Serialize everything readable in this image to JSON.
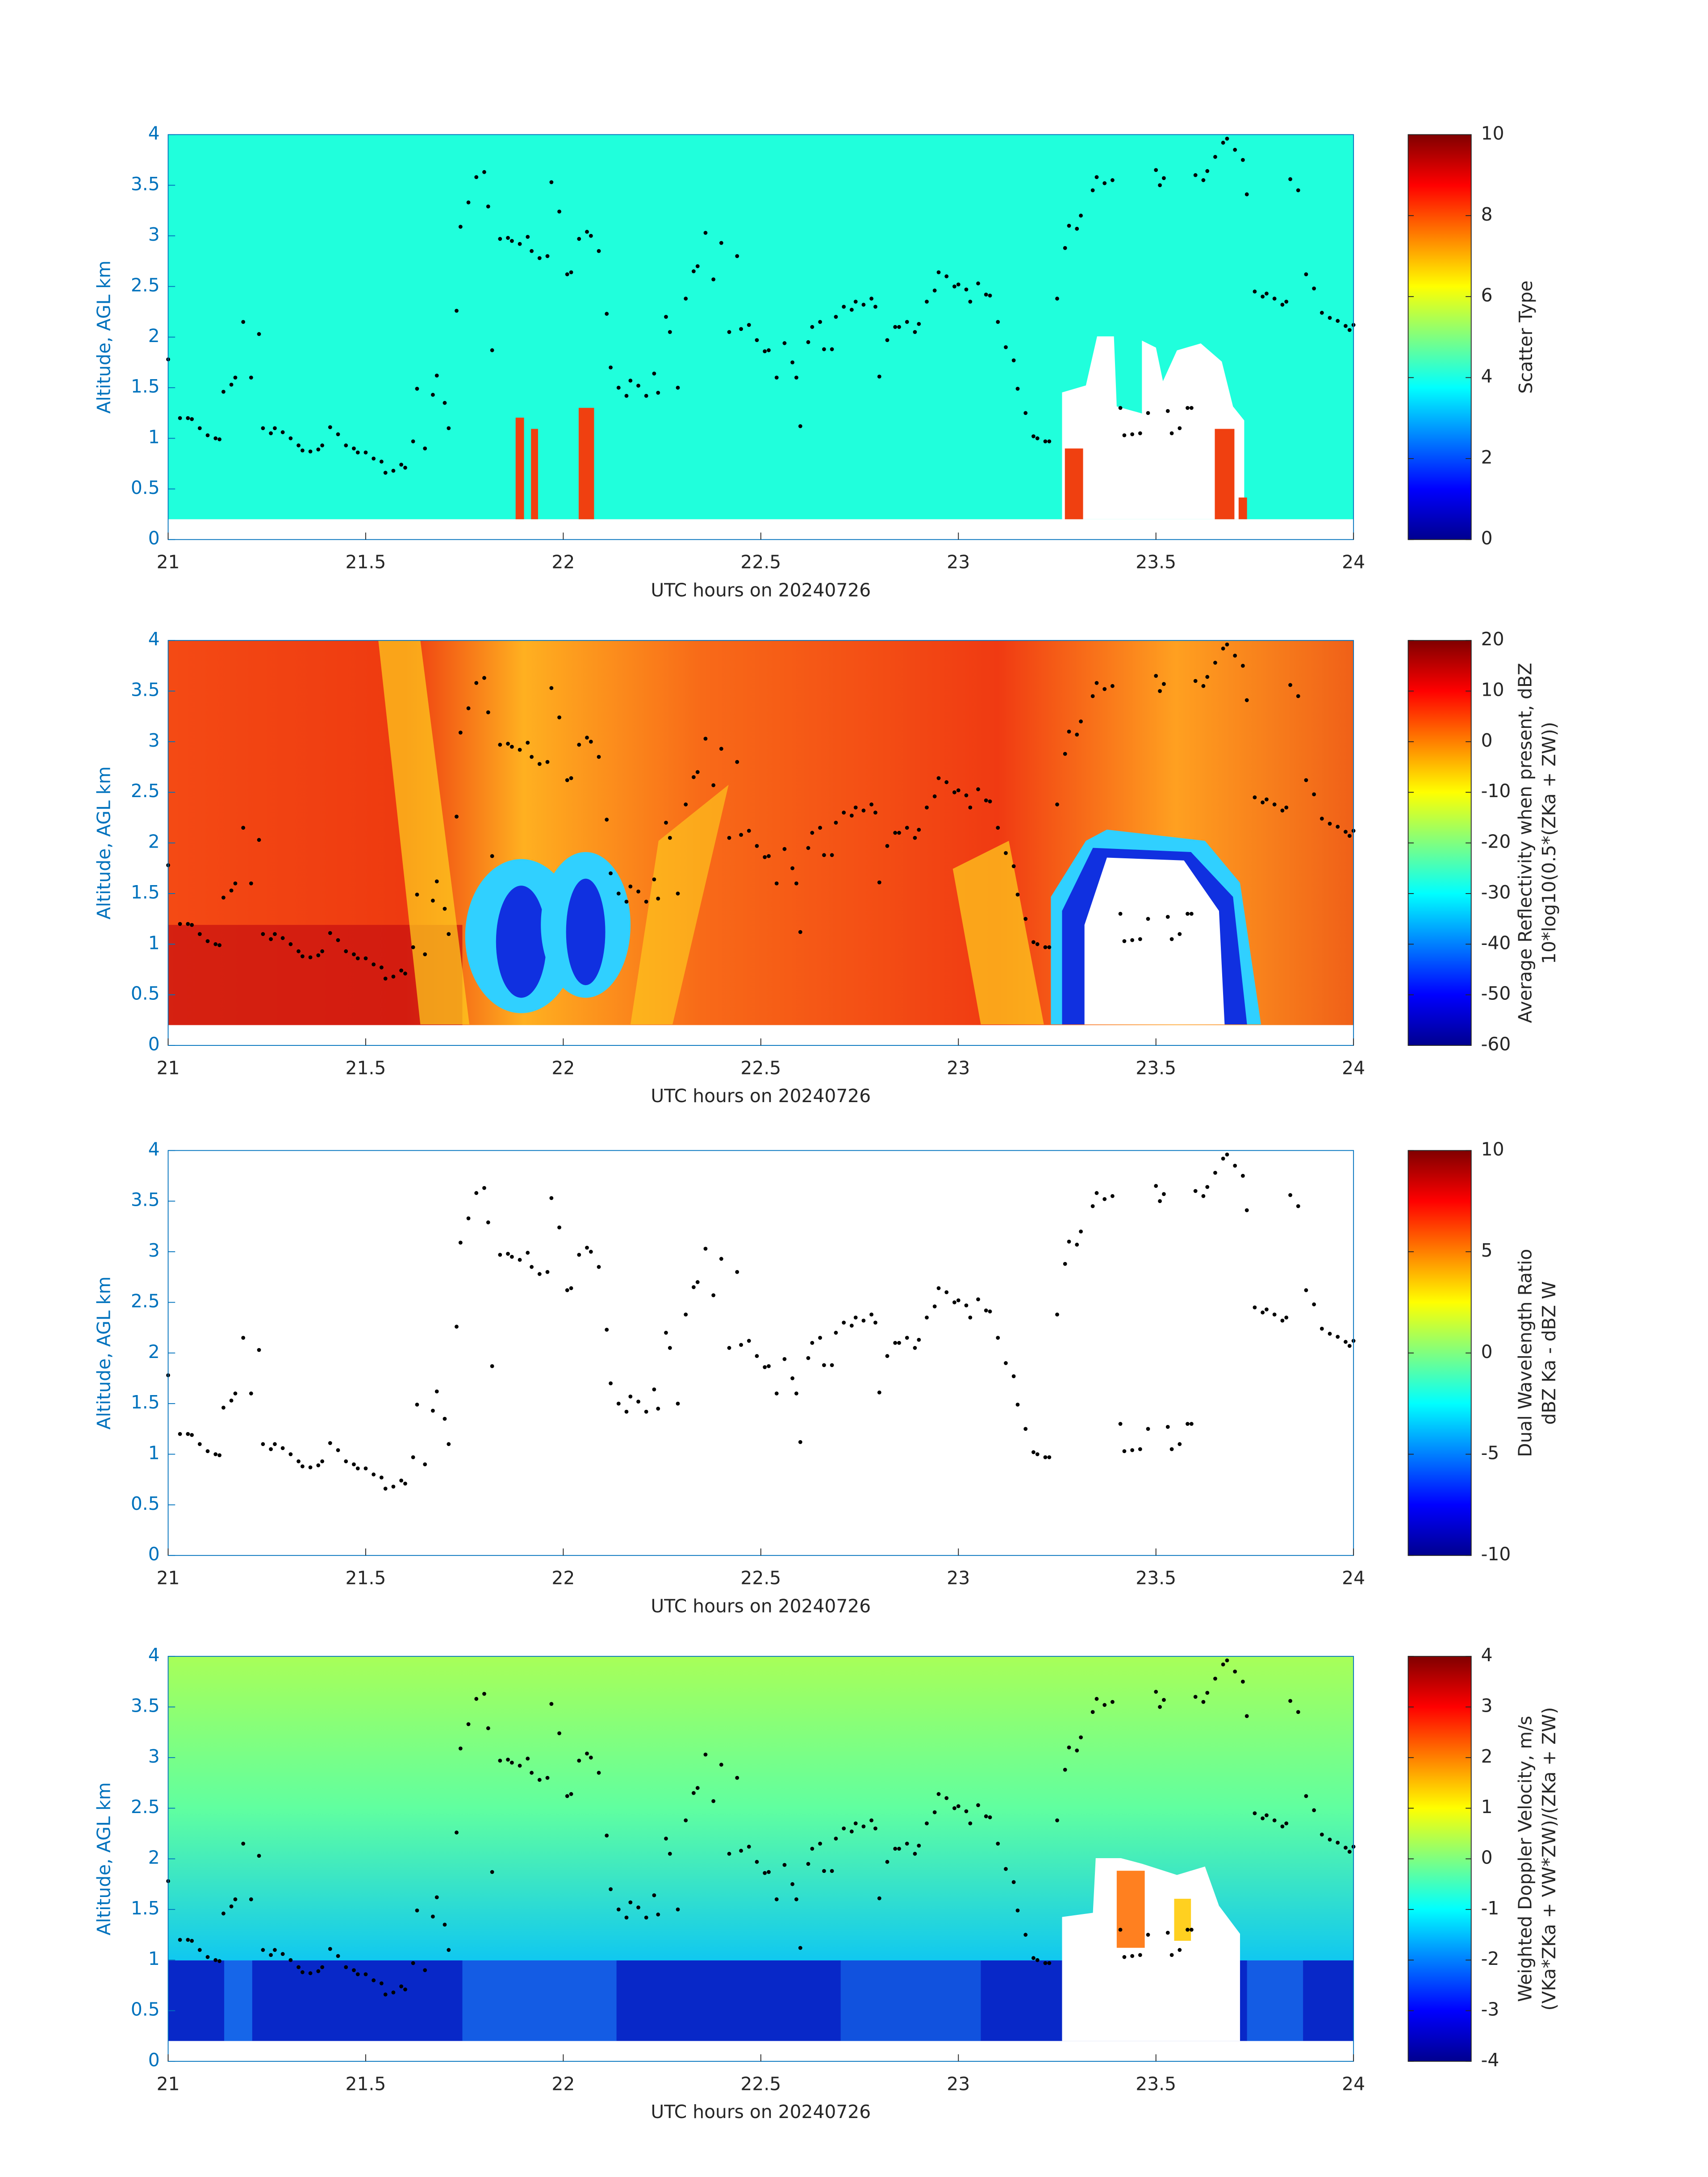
{
  "chart_data": [
    {
      "type": "heatmap",
      "xlabel": "UTC hours on 20240726",
      "ylabel": "Altitude, AGL km",
      "xlim": [
        21,
        24
      ],
      "xticks": [
        21,
        21.5,
        22,
        22.5,
        23,
        23.5,
        24
      ],
      "ylim": [
        0,
        4
      ],
      "yticks": [
        0,
        0.5,
        1,
        1.5,
        2,
        2.5,
        3,
        3.5,
        4
      ],
      "colorbar": {
        "label": [
          "Scatter Type"
        ],
        "clim": [
          0,
          10
        ],
        "ticks": [
          0,
          2,
          4,
          6,
          8,
          10
        ]
      },
      "points": {
        "color": "#000000",
        "x": [
          21.0,
          21.03,
          21.05,
          21.06,
          21.08,
          21.1,
          21.12,
          21.13,
          21.14,
          21.16,
          21.17,
          21.19,
          21.21,
          21.23,
          21.24,
          21.26,
          21.27,
          21.29,
          21.31,
          21.33,
          21.34,
          21.36,
          21.38,
          21.39,
          21.41,
          21.43,
          21.45,
          21.47,
          21.48,
          21.5,
          21.52,
          21.54,
          21.55,
          21.57,
          21.59,
          21.6,
          21.62,
          21.63,
          21.65,
          21.67,
          21.68,
          21.7,
          21.71,
          21.73,
          21.74,
          21.76,
          21.78,
          21.8,
          21.81,
          21.82,
          21.84,
          21.86,
          21.87,
          21.89,
          21.91,
          21.92,
          21.94,
          21.96,
          21.97,
          21.99,
          22.01,
          22.02,
          22.04,
          22.06,
          22.07,
          22.09,
          22.11,
          22.12,
          22.14,
          22.16,
          22.17,
          22.19,
          22.21,
          22.23,
          22.24,
          22.26,
          22.27,
          22.29,
          22.31,
          22.33,
          22.34,
          22.36,
          22.38,
          22.4,
          22.42,
          22.44,
          22.45,
          22.47,
          22.49,
          22.51,
          22.52,
          22.54,
          22.56,
          22.58,
          22.59,
          22.6,
          22.62,
          22.63,
          22.65,
          22.66,
          22.68,
          22.69,
          22.71,
          22.73,
          22.74,
          22.76,
          22.78,
          22.79,
          22.8,
          22.82,
          22.84,
          22.85,
          22.87,
          22.89,
          22.9,
          22.92,
          22.94,
          22.95,
          22.97,
          22.99,
          23.0,
          23.02,
          23.03,
          23.05,
          23.07,
          23.08,
          23.1,
          23.12,
          23.14,
          23.15,
          23.17,
          23.19,
          23.2,
          23.22,
          23.23,
          23.25,
          23.27,
          23.28,
          23.3,
          23.31,
          23.34,
          23.35,
          23.37,
          23.39,
          23.41,
          23.42,
          23.44,
          23.46,
          23.48,
          23.5,
          23.51,
          23.52,
          23.53,
          23.54,
          23.56,
          23.58,
          23.59,
          23.6,
          23.62,
          23.63,
          23.65,
          23.67,
          23.68,
          23.7,
          23.72,
          23.73,
          23.75,
          23.77,
          23.78,
          23.8,
          23.82,
          23.83,
          23.84,
          23.86,
          23.88,
          23.9,
          23.92,
          23.94,
          23.96,
          23.98,
          23.99,
          24.0
        ],
        "values": [
          1.78,
          1.2,
          1.2,
          1.19,
          1.1,
          1.03,
          1.0,
          0.99,
          1.46,
          1.53,
          1.6,
          2.15,
          1.6,
          2.03,
          1.1,
          1.05,
          1.1,
          1.06,
          1.0,
          0.93,
          0.88,
          0.87,
          0.89,
          0.93,
          1.11,
          1.04,
          0.93,
          0.9,
          0.86,
          0.86,
          0.8,
          0.77,
          0.66,
          0.68,
          0.74,
          0.71,
          0.97,
          1.49,
          0.9,
          1.43,
          1.62,
          1.35,
          1.1,
          2.26,
          3.09,
          3.33,
          3.58,
          3.63,
          3.29,
          1.87,
          2.97,
          2.98,
          2.95,
          2.92,
          2.99,
          2.85,
          2.78,
          2.8,
          3.53,
          3.24,
          2.62,
          2.64,
          2.97,
          3.04,
          3.0,
          2.85,
          2.23,
          1.7,
          1.5,
          1.42,
          1.57,
          1.52,
          1.42,
          1.64,
          1.45,
          2.2,
          2.05,
          1.5,
          2.38,
          2.65,
          2.7,
          3.03,
          2.57,
          2.93,
          2.05,
          2.8,
          2.08,
          2.12,
          1.97,
          1.86,
          1.87,
          1.6,
          1.94,
          1.75,
          1.6,
          1.12,
          1.95,
          2.1,
          2.15,
          1.88,
          1.88,
          2.2,
          2.3,
          2.27,
          2.35,
          2.32,
          2.38,
          2.3,
          1.61,
          1.97,
          2.1,
          2.1,
          2.15,
          2.05,
          2.13,
          2.35,
          2.46,
          2.64,
          2.6,
          2.5,
          2.52,
          2.47,
          2.35,
          2.53,
          2.42,
          2.41,
          2.15,
          1.9,
          1.77,
          1.49,
          1.25,
          1.02,
          1.0,
          0.97,
          0.97,
          2.38,
          2.88,
          3.1,
          3.07,
          3.2,
          3.45,
          3.58,
          3.52,
          3.55,
          1.3,
          1.03,
          1.04,
          1.05,
          1.25,
          3.65,
          3.5,
          3.57,
          1.27,
          1.05,
          1.1,
          1.3,
          1.3,
          3.6,
          3.55,
          3.64,
          3.78,
          3.92,
          3.96,
          3.85,
          3.75,
          3.41,
          2.45,
          2.4,
          2.43,
          2.38,
          2.32,
          2.35,
          3.56,
          3.45,
          2.62,
          2.48,
          2.24,
          2.19,
          2.16,
          2.11,
          2.07,
          2.12
        ]
      }
    },
    {
      "type": "heatmap",
      "xlabel": "UTC hours on 20240726",
      "ylabel": "Altitude, AGL km",
      "xlim": [
        21,
        24
      ],
      "xticks": [
        21,
        21.5,
        22,
        22.5,
        23,
        23.5,
        24
      ],
      "ylim": [
        0,
        4
      ],
      "yticks": [
        0,
        0.5,
        1,
        1.5,
        2,
        2.5,
        3,
        3.5,
        4
      ],
      "colorbar": {
        "label": [
          "Average Reflectivity when present, dBZ",
          "10*log10(0.5*(ZKa + ZW))"
        ],
        "clim": [
          -60,
          20
        ],
        "ticks": [
          -60,
          -50,
          -40,
          -30,
          -20,
          -10,
          0,
          10,
          20
        ]
      }
    },
    {
      "type": "heatmap",
      "xlabel": "UTC hours on 20240726",
      "ylabel": "Altitude, AGL km",
      "xlim": [
        21,
        24
      ],
      "xticks": [
        21,
        21.5,
        22,
        22.5,
        23,
        23.5,
        24
      ],
      "ylim": [
        0,
        4
      ],
      "yticks": [
        0,
        0.5,
        1,
        1.5,
        2,
        2.5,
        3,
        3.5,
        4
      ],
      "colorbar": {
        "label": [
          "Dual Wavelength Ratio",
          "dBZ Ka - dBZ W"
        ],
        "clim": [
          -10,
          10
        ],
        "ticks": [
          -10,
          -5,
          0,
          5,
          10
        ]
      }
    },
    {
      "type": "heatmap",
      "xlabel": "UTC hours on 20240726",
      "ylabel": "Altitude, AGL km",
      "xlim": [
        21,
        24
      ],
      "xticks": [
        21,
        21.5,
        22,
        22.5,
        23,
        23.5,
        24
      ],
      "ylim": [
        0,
        4
      ],
      "yticks": [
        0,
        0.5,
        1,
        1.5,
        2,
        2.5,
        3,
        3.5,
        4
      ],
      "colorbar": {
        "label": [
          "Weighted Doppler Velocity, m/s",
          "(VKa*ZKa + VW*ZW)/(ZKa + ZW)"
        ],
        "clim": [
          -4,
          4
        ],
        "ticks": [
          -4,
          -3,
          -2,
          -1,
          0,
          1,
          2,
          3,
          4
        ]
      }
    }
  ]
}
